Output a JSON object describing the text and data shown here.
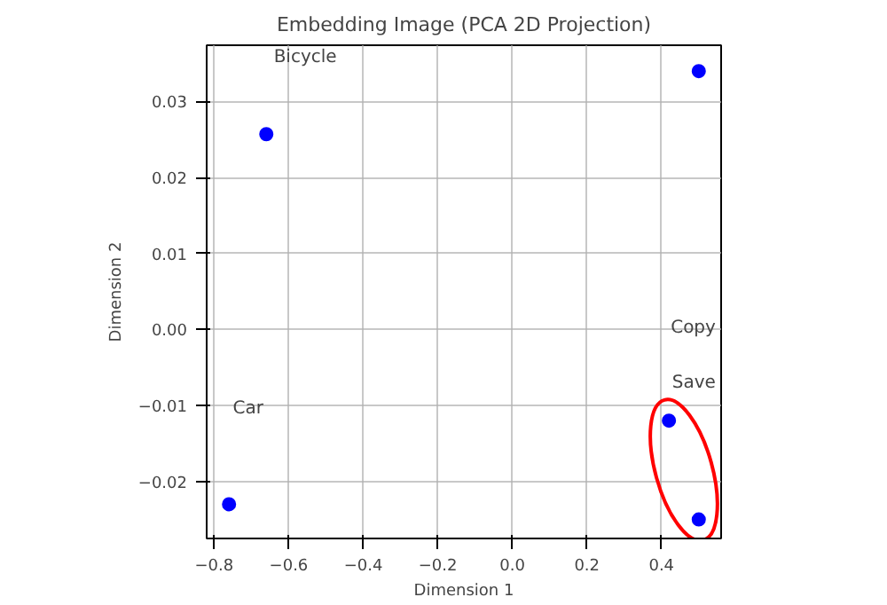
{
  "chart_data": {
    "type": "scatter",
    "title": "Embedding Image (PCA 2D Projection)",
    "xlabel": "Dimension 1",
    "ylabel": "Dimension 2",
    "x": [
      -0.66,
      0.5,
      -0.76,
      0.42,
      0.5
    ],
    "series": [
      {
        "color": "#0000ff",
        "values": [
          0.0257,
          0.034,
          -0.023,
          -0.012,
          -0.025
        ]
      }
    ],
    "marker": "circle",
    "grid": true,
    "xlim": [
      -0.82,
      0.56
    ],
    "ylim": [
      -0.0275,
      0.0374
    ],
    "xticks": [
      {
        "value": -0.8,
        "label": "−0.8"
      },
      {
        "value": -0.6,
        "label": "−0.6"
      },
      {
        "value": -0.4,
        "label": "−0.4"
      },
      {
        "value": -0.2,
        "label": "−0.2"
      },
      {
        "value": 0.0,
        "label": "0.0"
      },
      {
        "value": 0.2,
        "label": "0.2"
      },
      {
        "value": 0.4,
        "label": "0.4"
      }
    ],
    "yticks": [
      {
        "value": -0.02,
        "label": "−0.02"
      },
      {
        "value": -0.01,
        "label": "−0.01"
      },
      {
        "value": 0.0,
        "label": "0.00"
      },
      {
        "value": 0.01,
        "label": "0.01"
      },
      {
        "value": 0.02,
        "label": "0.02"
      },
      {
        "value": 0.03,
        "label": "0.03"
      }
    ],
    "annotations": [
      "Bicycle",
      "Copy",
      "Save",
      "Car"
    ]
  }
}
